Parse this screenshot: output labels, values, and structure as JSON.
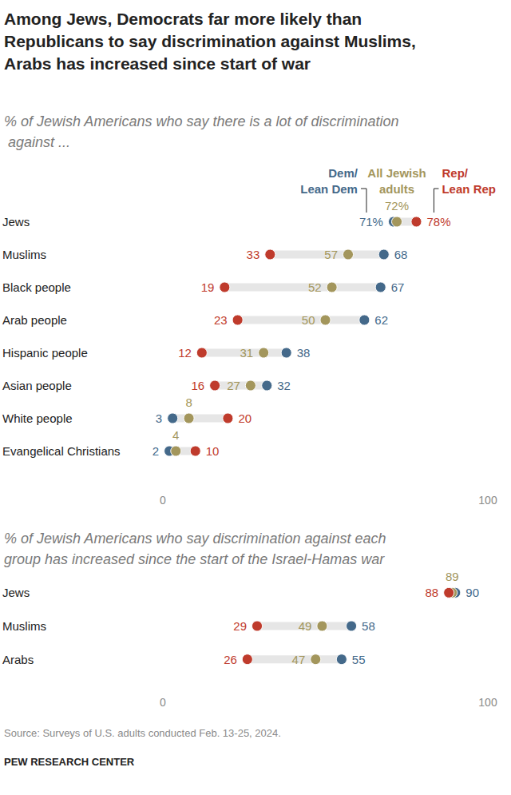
{
  "title": "Among Jews, Democrats far more likely than Republicans to say discrimination against Muslims, Arabs has increased since start of war",
  "source": "Source: Surveys of U.S. adults conducted Feb. 13-25, 2024.",
  "credit": "PEW RESEARCH CENTER",
  "chart_data": [
    {
      "type": "dot",
      "subtitle": "% of Jewish Americans who say there is a lot of discrimination against ...",
      "orientation": "horizontal",
      "legend": "top",
      "data_labels": true,
      "grid": false,
      "categories": [
        "Jews",
        "Muslims",
        "Black people",
        "Arab people",
        "Hispanic people",
        "Asian people",
        "White people",
        "Evangelical Christians"
      ],
      "series": [
        {
          "name": "Dem/\nLean Dem",
          "color": "#44698a",
          "values": [
            71,
            68,
            67,
            62,
            38,
            32,
            3,
            2
          ],
          "value_labels": [
            "71%",
            "68",
            "67",
            "62",
            "38",
            "32",
            "3",
            "2"
          ]
        },
        {
          "name": "All Jewish\nadults",
          "color": "#a3965c",
          "values": [
            72,
            57,
            52,
            50,
            31,
            27,
            8,
            4
          ],
          "value_labels": [
            "72%",
            "57",
            "52",
            "50",
            "31",
            "27",
            "8",
            "4"
          ]
        },
        {
          "name": "Rep/\nLean Rep",
          "color": "#bf3b2c",
          "values": [
            78,
            33,
            19,
            23,
            12,
            16,
            20,
            10
          ],
          "value_labels": [
            "78%",
            "33",
            "19",
            "23",
            "12",
            "16",
            "20",
            "10"
          ]
        }
      ],
      "xlim": [
        0,
        100
      ],
      "xticks": [
        0,
        100
      ]
    },
    {
      "type": "dot",
      "subtitle": "% of Jewish Americans who say discrimination against each group has increased since the start of the Israel-Hamas war",
      "orientation": "horizontal",
      "data_labels": true,
      "grid": false,
      "categories": [
        "Jews",
        "Muslims",
        "Arabs"
      ],
      "series": [
        {
          "name": "Dem/\nLean Dem",
          "color": "#44698a",
          "values": [
            90,
            58,
            55
          ]
        },
        {
          "name": "All Jewish\nadults",
          "color": "#a3965c",
          "values": [
            89,
            49,
            47
          ]
        },
        {
          "name": "Rep/\nLean Rep",
          "color": "#bf3b2c",
          "values": [
            88,
            29,
            26
          ]
        }
      ],
      "xlim": [
        0,
        100
      ],
      "xticks": [
        0,
        100
      ]
    }
  ]
}
